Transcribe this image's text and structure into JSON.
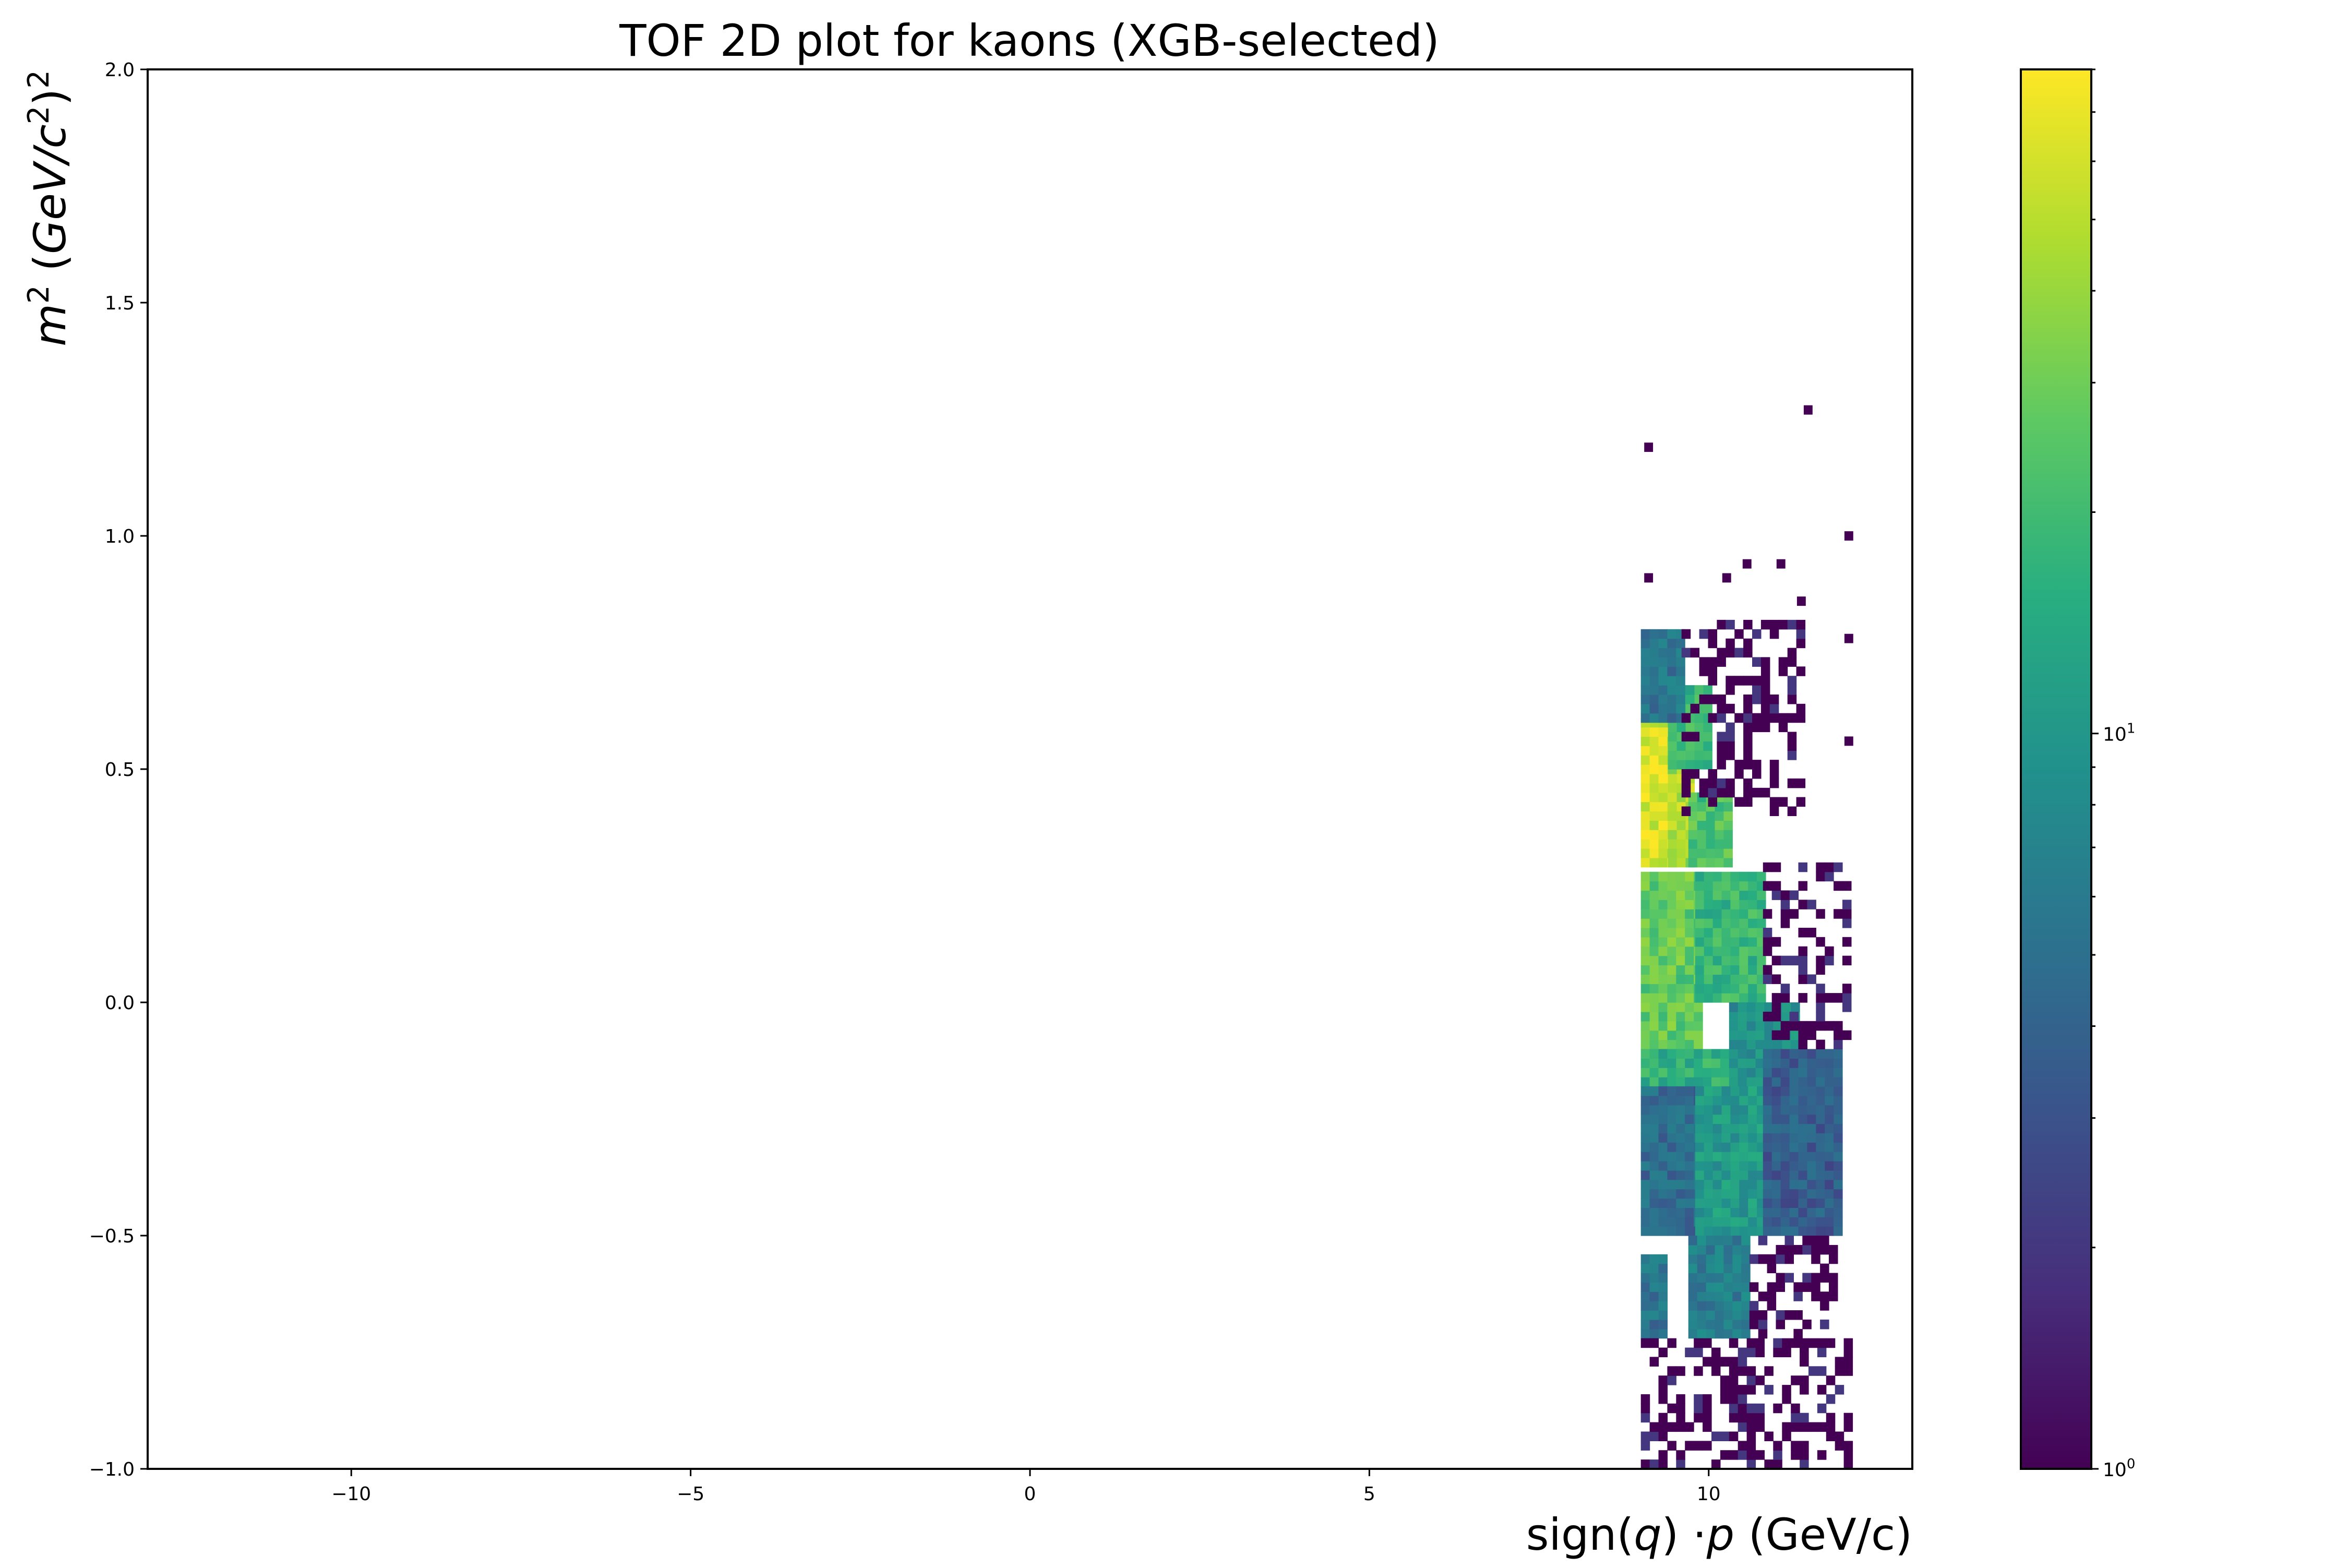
{
  "chart_data": {
    "type": "heatmap",
    "title": "TOF 2D plot for kaons (XGB-selected)",
    "xlabel": {
      "prefix": "sign(",
      "q": "q",
      "mid": ") ·",
      "p": "p",
      "suffix": " (GeV/c)"
    },
    "ylabel": {
      "m": "m",
      "sup2": "2",
      "open": " (",
      "gev": "GeV",
      "slash": "/",
      "c": "c",
      "close": ")"
    },
    "xlim": [
      -13,
      13
    ],
    "ylim": [
      -1.0,
      2.0
    ],
    "xticks": [
      {
        "value": -10,
        "label": "−10"
      },
      {
        "value": -5,
        "label": "−5"
      },
      {
        "value": 0,
        "label": "0"
      },
      {
        "value": 5,
        "label": "5"
      },
      {
        "value": 10,
        "label": "10"
      }
    ],
    "yticks": [
      {
        "value": -1.0,
        "label": "−1.0"
      },
      {
        "value": -0.5,
        "label": "−0.5"
      },
      {
        "value": 0.0,
        "label": "0.0"
      },
      {
        "value": 0.5,
        "label": "0.5"
      },
      {
        "value": 1.0,
        "label": "1.0"
      },
      {
        "value": 1.5,
        "label": "1.5"
      },
      {
        "value": 2.0,
        "label": "2.0"
      }
    ],
    "colorbar": {
      "scale": "log",
      "colormap": "viridis",
      "range": [
        1,
        80
      ],
      "ticks": [
        {
          "value": 1,
          "base": "10",
          "exp": "0"
        },
        {
          "value": 10,
          "base": "10",
          "exp": "1"
        }
      ]
    },
    "bin_width_x": 0.13,
    "bin_height_y": 0.02,
    "regions": [
      {
        "x0": 9.0,
        "x1": 9.4,
        "y0": 0.29,
        "y1": 0.6,
        "count": 65
      },
      {
        "x0": 9.4,
        "x1": 9.7,
        "y0": 0.29,
        "y1": 0.5,
        "count": 50
      },
      {
        "x0": 9.4,
        "x1": 10.0,
        "y0": 0.5,
        "y1": 0.68,
        "count": 20
      },
      {
        "x0": 9.7,
        "x1": 10.3,
        "y0": 0.29,
        "y1": 0.45,
        "count": 25
      },
      {
        "x0": 9.0,
        "x1": 9.6,
        "y0": 0.6,
        "y1": 0.8,
        "count": 6
      },
      {
        "x0": 9.0,
        "x1": 9.8,
        "y0": -0.1,
        "y1": 0.27,
        "count": 30
      },
      {
        "x0": 9.8,
        "x1": 10.8,
        "y0": 0.0,
        "y1": 0.27,
        "count": 20
      },
      {
        "x0": 9.0,
        "x1": 10.3,
        "y0": -0.18,
        "y1": -0.1,
        "count": 18
      },
      {
        "x0": 10.3,
        "x1": 11.3,
        "y0": -0.18,
        "y1": 0.0,
        "count": 10
      },
      {
        "x0": 9.0,
        "x1": 9.8,
        "y0": -0.5,
        "y1": -0.18,
        "count": 5
      },
      {
        "x0": 9.8,
        "x1": 10.8,
        "y0": -0.5,
        "y1": -0.18,
        "count": 12
      },
      {
        "x0": 10.8,
        "x1": 11.9,
        "y0": -0.5,
        "y1": -0.1,
        "count": 4
      },
      {
        "x0": 9.0,
        "x1": 9.3,
        "y0": -0.72,
        "y1": -0.55,
        "count": 6
      },
      {
        "x0": 9.7,
        "x1": 10.6,
        "y0": -0.72,
        "y1": -0.5,
        "count": 7
      },
      {
        "x0": 10.6,
        "x1": 11.9,
        "y0": -0.72,
        "y1": -0.5,
        "count": 2
      },
      {
        "x0": 9.0,
        "x1": 12.0,
        "y0": -1.0,
        "y1": -0.72,
        "count": 1
      },
      {
        "x0": 9.6,
        "x1": 11.4,
        "y0": 0.4,
        "y1": 0.82,
        "count": 1
      },
      {
        "x0": 10.8,
        "x1": 12.0,
        "y0": -0.1,
        "y1": 0.3,
        "count": 2
      }
    ],
    "outliers": [
      {
        "x": 9.05,
        "y": 1.18,
        "count": 1
      },
      {
        "x": 11.4,
        "y": 1.26,
        "count": 1
      },
      {
        "x": 12.0,
        "y": 0.99,
        "count": 1
      },
      {
        "x": 9.05,
        "y": 0.9,
        "count": 1
      },
      {
        "x": 10.2,
        "y": 0.9,
        "count": 1
      },
      {
        "x": 10.5,
        "y": 0.93,
        "count": 1
      },
      {
        "x": 11.0,
        "y": 0.93,
        "count": 1
      },
      {
        "x": 11.3,
        "y": 0.85,
        "count": 1
      },
      {
        "x": 12.0,
        "y": 0.77,
        "count": 1
      },
      {
        "x": 12.0,
        "y": 0.55,
        "count": 1
      }
    ]
  }
}
